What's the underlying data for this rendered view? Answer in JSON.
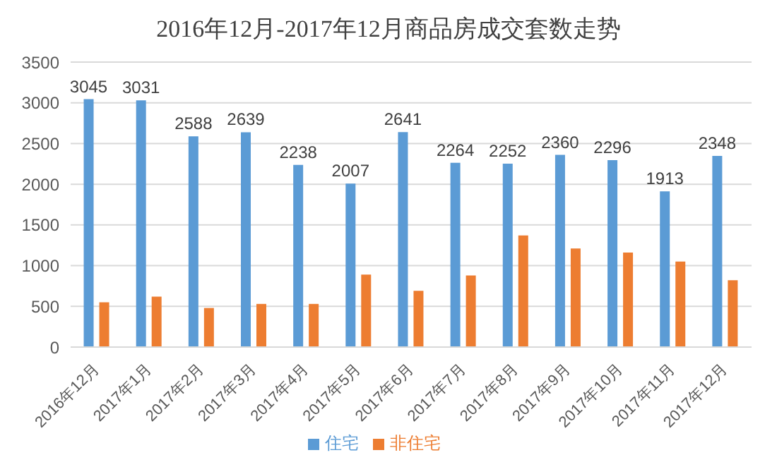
{
  "chart_data": {
    "type": "bar",
    "title": "2016年12月-2017年12月商品房成交套数走势",
    "categories": [
      "2016年12月",
      "2017年1月",
      "2017年2月",
      "2017年3月",
      "2017年4月",
      "2017年5月",
      "2017年6月",
      "2017年7月",
      "2017年8月",
      "2017年9月",
      "2017年10月",
      "2017年11月",
      "2017年12月"
    ],
    "series": [
      {
        "name": "住宅",
        "color": "#5b9bd5",
        "values": [
          3045,
          3031,
          2588,
          2639,
          2238,
          2007,
          2641,
          2264,
          2252,
          2360,
          2296,
          1913,
          2348
        ],
        "value_labels": [
          "3045",
          "3031",
          "2588",
          "2639",
          "2238",
          "2007",
          "2641",
          "2264",
          "2252",
          "2360",
          "2296",
          "1913",
          "2348"
        ]
      },
      {
        "name": "非住宅",
        "color": "#ed7d31",
        "values": [
          550,
          620,
          480,
          530,
          530,
          890,
          690,
          880,
          1370,
          1210,
          1160,
          1050,
          820
        ]
      }
    ],
    "ylim": [
      0,
      3500
    ],
    "yticks": [
      0,
      500,
      1000,
      1500,
      2000,
      2500,
      3000,
      3500
    ],
    "grid": "y",
    "legend": "bottom"
  }
}
